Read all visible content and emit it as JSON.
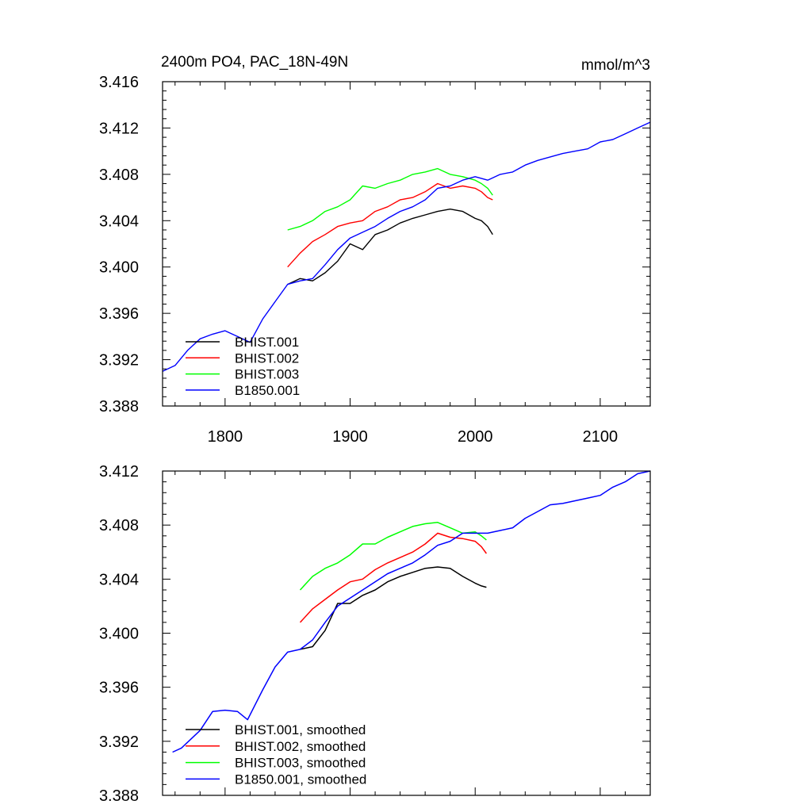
{
  "chart_data": [
    {
      "type": "line",
      "title_left": "2400m PO4, PAC_18N-49N",
      "title_right": "mmol/m^3",
      "xlabel": "",
      "ylabel": "",
      "xlim": [
        1750,
        2140
      ],
      "ylim": [
        3.388,
        3.416
      ],
      "xticks": [
        1800,
        1900,
        2000,
        2100
      ],
      "xtick_labels": [
        "1800",
        "1900",
        "2000",
        "2100"
      ],
      "yticks": [
        3.388,
        3.392,
        3.396,
        3.4,
        3.404,
        3.408,
        3.412,
        3.416
      ],
      "ytick_labels": [
        "3.388",
        "3.392",
        "3.396",
        "3.400",
        "3.404",
        "3.408",
        "3.412",
        "3.416"
      ],
      "legend_position": "bottom-left",
      "series": [
        {
          "name": "BHIST.001",
          "color": "#000000",
          "x": [
            1850,
            1860,
            1870,
            1880,
            1890,
            1900,
            1910,
            1920,
            1930,
            1940,
            1950,
            1960,
            1970,
            1980,
            1990,
            2000,
            2005,
            2010,
            2014
          ],
          "y": [
            3.3985,
            3.399,
            3.3988,
            3.3995,
            3.4005,
            3.402,
            3.4015,
            3.4028,
            3.4032,
            3.4038,
            3.4042,
            3.4045,
            3.4048,
            3.405,
            3.4048,
            3.4042,
            3.404,
            3.4035,
            3.4028
          ]
        },
        {
          "name": "BHIST.002",
          "color": "#ff0000",
          "x": [
            1850,
            1860,
            1870,
            1880,
            1890,
            1900,
            1910,
            1920,
            1930,
            1940,
            1950,
            1960,
            1970,
            1980,
            1990,
            2000,
            2005,
            2010,
            2014
          ],
          "y": [
            3.4,
            3.4012,
            3.4022,
            3.4028,
            3.4035,
            3.4038,
            3.404,
            3.4048,
            3.4052,
            3.4058,
            3.406,
            3.4065,
            3.4072,
            3.4068,
            3.407,
            3.4068,
            3.4065,
            3.406,
            3.4058
          ]
        },
        {
          "name": "BHIST.003",
          "color": "#00ff00",
          "x": [
            1850,
            1860,
            1870,
            1880,
            1890,
            1900,
            1910,
            1920,
            1930,
            1940,
            1950,
            1960,
            1970,
            1980,
            1990,
            2000,
            2005,
            2010,
            2014
          ],
          "y": [
            3.4032,
            3.4035,
            3.404,
            3.4048,
            3.4052,
            3.4058,
            3.407,
            3.4068,
            3.4072,
            3.4075,
            3.408,
            3.4082,
            3.4085,
            3.408,
            3.4078,
            3.4075,
            3.4072,
            3.4068,
            3.4062
          ]
        },
        {
          "name": "B1850.001",
          "color": "#0000ff",
          "x": [
            1750,
            1760,
            1770,
            1780,
            1790,
            1800,
            1810,
            1820,
            1830,
            1840,
            1850,
            1860,
            1870,
            1880,
            1890,
            1900,
            1910,
            1920,
            1930,
            1940,
            1950,
            1960,
            1970,
            1980,
            1990,
            2000,
            2010,
            2020,
            2030,
            2040,
            2050,
            2060,
            2070,
            2080,
            2090,
            2100,
            2110,
            2120,
            2130,
            2140
          ],
          "y": [
            3.391,
            3.3915,
            3.3928,
            3.3938,
            3.3942,
            3.3945,
            3.394,
            3.3935,
            3.3955,
            3.397,
            3.3985,
            3.3988,
            3.399,
            3.4002,
            3.4015,
            3.4025,
            3.403,
            3.4035,
            3.4042,
            3.4048,
            3.4052,
            3.4058,
            3.4068,
            3.407,
            3.4075,
            3.4078,
            3.4075,
            3.408,
            3.4082,
            3.4088,
            3.4092,
            3.4095,
            3.4098,
            3.41,
            3.4102,
            3.4108,
            3.411,
            3.4115,
            3.412,
            3.4125
          ]
        }
      ]
    },
    {
      "type": "line",
      "title_left": "",
      "title_right": "",
      "xlabel": "",
      "ylabel": "",
      "xlim": [
        1750,
        2140
      ],
      "ylim": [
        3.388,
        3.412
      ],
      "xticks": [
        1800,
        1900,
        2000,
        2100
      ],
      "xtick_labels": [],
      "yticks": [
        3.388,
        3.392,
        3.396,
        3.4,
        3.404,
        3.408,
        3.412
      ],
      "ytick_labels": [
        "3.388",
        "3.392",
        "3.396",
        "3.400",
        "3.404",
        "3.408",
        "3.412"
      ],
      "legend_position": "bottom-left",
      "series": [
        {
          "name": "BHIST.001, smoothed",
          "color": "#000000",
          "x": [
            1860,
            1870,
            1880,
            1890,
            1900,
            1910,
            1920,
            1930,
            1940,
            1950,
            1960,
            1970,
            1980,
            1990,
            2000,
            2005,
            2009
          ],
          "y": [
            3.3988,
            3.399,
            3.4002,
            3.4022,
            3.4022,
            3.4028,
            3.4032,
            3.4038,
            3.4042,
            3.4045,
            3.4048,
            3.4049,
            3.4048,
            3.4042,
            3.4037,
            3.4035,
            3.4034
          ]
        },
        {
          "name": "BHIST.002, smoothed",
          "color": "#ff0000",
          "x": [
            1860,
            1870,
            1880,
            1890,
            1900,
            1910,
            1920,
            1930,
            1940,
            1950,
            1960,
            1970,
            1980,
            1990,
            2000,
            2005,
            2009
          ],
          "y": [
            3.4008,
            3.4018,
            3.4025,
            3.4032,
            3.4038,
            3.404,
            3.4047,
            3.4052,
            3.4056,
            3.406,
            3.4066,
            3.4074,
            3.4071,
            3.407,
            3.4068,
            3.4064,
            3.4059
          ]
        },
        {
          "name": "BHIST.003, smoothed",
          "color": "#00ff00",
          "x": [
            1860,
            1870,
            1880,
            1890,
            1900,
            1910,
            1920,
            1930,
            1940,
            1950,
            1960,
            1970,
            1980,
            1990,
            2000,
            2005,
            2009
          ],
          "y": [
            3.4032,
            3.4042,
            3.4048,
            3.4052,
            3.4058,
            3.4066,
            3.4066,
            3.4071,
            3.4075,
            3.4079,
            3.4081,
            3.4082,
            3.4078,
            3.4074,
            3.4075,
            3.4072,
            3.4069
          ]
        },
        {
          "name": "B1850.001, smoothed",
          "color": "#0000ff",
          "x": [
            1758,
            1765,
            1780,
            1790,
            1800,
            1810,
            1818,
            1830,
            1840,
            1850,
            1860,
            1870,
            1880,
            1890,
            1900,
            1910,
            1920,
            1930,
            1940,
            1950,
            1960,
            1970,
            1980,
            1990,
            2000,
            2010,
            2020,
            2030,
            2040,
            2050,
            2060,
            2070,
            2080,
            2090,
            2100,
            2110,
            2120,
            2130,
            2140
          ],
          "y": [
            3.3912,
            3.3915,
            3.3928,
            3.3942,
            3.3943,
            3.3942,
            3.3936,
            3.3958,
            3.3975,
            3.3986,
            3.3988,
            3.3995,
            3.4008,
            3.402,
            3.4026,
            3.4032,
            3.4038,
            3.4044,
            3.4048,
            3.4052,
            3.4058,
            3.4065,
            3.4068,
            3.4074,
            3.4074,
            3.4074,
            3.4076,
            3.4078,
            3.4085,
            3.409,
            3.4095,
            3.4096,
            3.4098,
            3.41,
            3.4102,
            3.4108,
            3.4112,
            3.4118,
            3.412
          ]
        }
      ]
    }
  ]
}
